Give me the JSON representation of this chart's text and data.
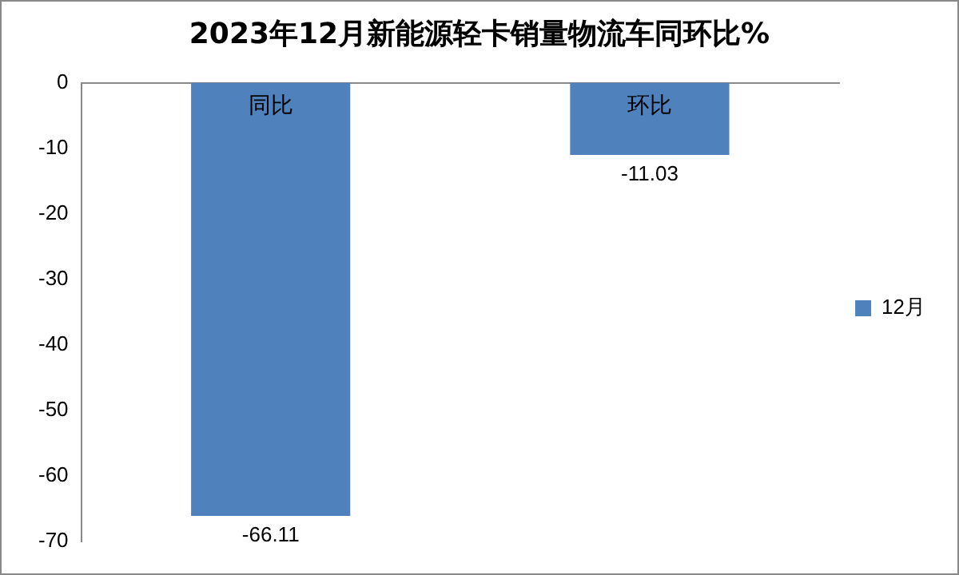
{
  "chart_data": {
    "type": "bar",
    "title": "2023年12月新能源轻卡销量物流车同环比%",
    "categories": [
      "同比",
      "环比"
    ],
    "series": [
      {
        "name": "12月",
        "color": "#4f81bd",
        "values": [
          -66.11,
          -11.03
        ]
      }
    ],
    "ylim": [
      -70,
      0
    ],
    "yticks": [
      0,
      -10,
      -20,
      -30,
      -40,
      -50,
      -60,
      -70
    ],
    "grid": false,
    "legend": "right",
    "data_labels": true
  }
}
